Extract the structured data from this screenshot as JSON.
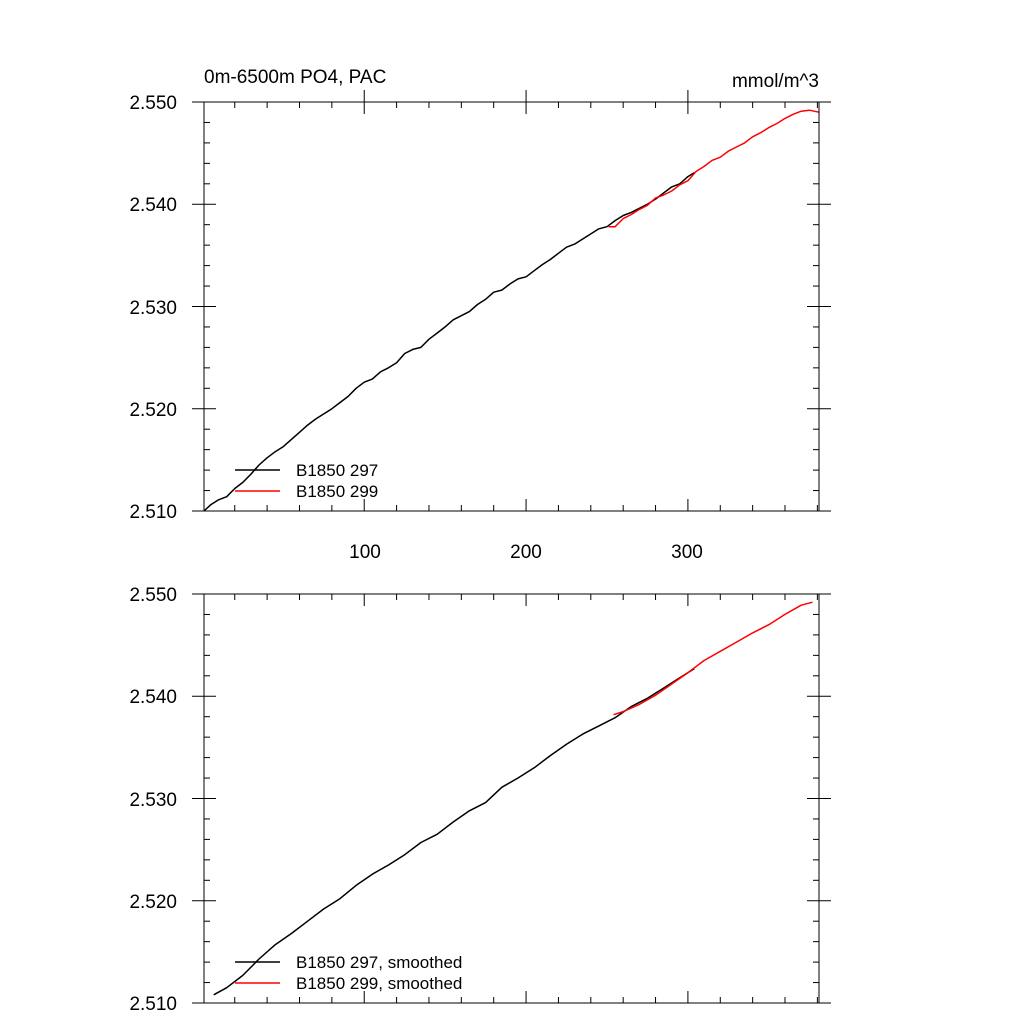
{
  "chart_data": [
    {
      "type": "line",
      "title": "0m-6500m PO4, PAC",
      "units": "mmol/m^3",
      "xlim": [
        1,
        381
      ],
      "ylim": [
        2.51,
        2.55
      ],
      "yticks": [
        "2.510",
        "2.520",
        "2.530",
        "2.540",
        "2.550"
      ],
      "xticks": [
        "100",
        "200",
        "300"
      ],
      "legend_position": "bottom-left",
      "series": [
        {
          "name": "B1850 297",
          "color": "#000000",
          "x": [
            1,
            5,
            10,
            15,
            20,
            25,
            30,
            35,
            40,
            45,
            50,
            55,
            60,
            65,
            70,
            75,
            80,
            85,
            90,
            95,
            100,
            105,
            110,
            115,
            120,
            125,
            130,
            135,
            140,
            145,
            150,
            155,
            160,
            165,
            170,
            175,
            180,
            185,
            190,
            195,
            200,
            205,
            210,
            215,
            220,
            225,
            230,
            235,
            240,
            245,
            250,
            255,
            260,
            265,
            270,
            275,
            280,
            285,
            290,
            295,
            300,
            304
          ],
          "y": [
            2.51,
            2.5106,
            2.5111,
            2.5114,
            2.5122,
            2.5128,
            2.5136,
            2.5145,
            2.5152,
            2.5158,
            2.5163,
            2.517,
            2.5177,
            2.5184,
            2.519,
            2.5195,
            2.52,
            2.5206,
            2.5212,
            2.522,
            2.5226,
            2.5229,
            2.5236,
            2.524,
            2.5245,
            2.5254,
            2.5258,
            2.526,
            2.5268,
            2.5274,
            2.528,
            2.5287,
            2.5291,
            2.5295,
            2.5302,
            2.5307,
            2.5314,
            2.5316,
            2.5322,
            2.5327,
            2.5329,
            2.5335,
            2.5341,
            2.5346,
            2.5352,
            2.5358,
            2.5361,
            2.5366,
            2.5371,
            2.5376,
            2.5378,
            2.5384,
            2.5389,
            2.5392,
            2.5396,
            2.54,
            2.5405,
            2.5411,
            2.5417,
            2.542,
            2.5427,
            2.5431
          ]
        },
        {
          "name": "B1850 299",
          "color": "#ff0000",
          "x": [
            251,
            255,
            260,
            265,
            270,
            275,
            280,
            285,
            290,
            295,
            300,
            305,
            310,
            315,
            320,
            325,
            330,
            335,
            340,
            345,
            350,
            355,
            360,
            365,
            370,
            375,
            381
          ],
          "y": [
            2.5378,
            2.5378,
            2.5386,
            2.539,
            2.5395,
            2.5399,
            2.5406,
            2.5409,
            2.5413,
            2.5419,
            2.5423,
            2.5432,
            2.5437,
            2.5443,
            2.5446,
            2.5452,
            2.5456,
            2.546,
            2.5466,
            2.547,
            2.5475,
            2.5479,
            2.5484,
            2.5488,
            2.5491,
            2.5492,
            2.549
          ]
        }
      ]
    },
    {
      "type": "line",
      "xlim": [
        1,
        381
      ],
      "ylim": [
        2.51,
        2.55
      ],
      "yticks": [
        "2.510",
        "2.520",
        "2.530",
        "2.540",
        "2.550"
      ],
      "legend_position": "bottom-left",
      "series": [
        {
          "name": "B1850 297, smoothed",
          "color": "#000000",
          "x": [
            7,
            15,
            25,
            35,
            45,
            55,
            65,
            75,
            85,
            95,
            105,
            115,
            125,
            135,
            145,
            155,
            165,
            175,
            185,
            195,
            205,
            215,
            225,
            235,
            245,
            255,
            265,
            275,
            285,
            295,
            304
          ],
          "y": [
            2.5108,
            2.5115,
            2.5127,
            2.5143,
            2.5157,
            2.5168,
            2.518,
            2.5192,
            2.5202,
            2.5215,
            2.5226,
            2.5235,
            2.5245,
            2.5257,
            2.5265,
            2.5277,
            2.5288,
            2.5296,
            2.5311,
            2.532,
            2.533,
            2.5342,
            2.5353,
            2.5363,
            2.5371,
            2.5379,
            2.539,
            2.5398,
            2.5408,
            2.5418,
            2.5427
          ]
        },
        {
          "name": "B1850 299, smoothed",
          "color": "#ff0000",
          "x": [
            254,
            260,
            270,
            280,
            290,
            300,
            310,
            320,
            330,
            340,
            350,
            360,
            370,
            377
          ],
          "y": [
            2.5382,
            2.5385,
            2.5392,
            2.5401,
            2.5412,
            2.5423,
            2.5435,
            2.5444,
            2.5453,
            2.5462,
            2.547,
            2.548,
            2.5489,
            2.5492
          ]
        }
      ]
    }
  ]
}
